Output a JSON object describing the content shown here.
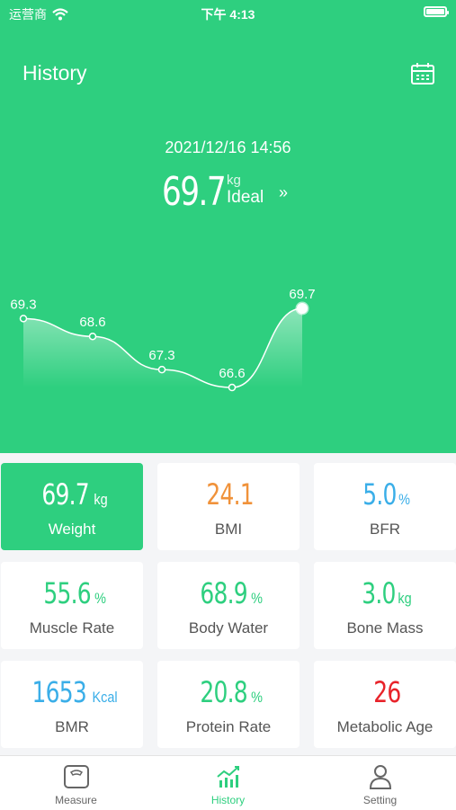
{
  "status_bar": {
    "carrier": "运营商",
    "time": "下午 4:13"
  },
  "header": {
    "title": "History"
  },
  "summary": {
    "datetime": "2021/12/16 14:56",
    "value": "69.7",
    "unit": "kg",
    "status": "Ideal"
  },
  "chart_data": {
    "type": "line",
    "values": [
      69.3,
      68.6,
      67.3,
      66.6,
      69.7
    ],
    "labels": [
      "69.3",
      "68.6",
      "67.3",
      "66.6",
      "69.7"
    ]
  },
  "metrics": [
    {
      "value": "69.7",
      "unit": "kg",
      "label": "Weight",
      "color": "#ffffff",
      "active": true
    },
    {
      "value": "24.1",
      "unit": "",
      "label": "BMI",
      "color": "#f0923a"
    },
    {
      "value": "5.0",
      "unit": "%",
      "label": "BFR",
      "color": "#3aaee8"
    },
    {
      "value": "55.6",
      "unit": "%",
      "label": "Muscle Rate",
      "color": "#2ecf7f"
    },
    {
      "value": "68.9",
      "unit": "%",
      "label": "Body Water",
      "color": "#2ecf7f"
    },
    {
      "value": "3.0",
      "unit": "kg",
      "label": "Bone Mass",
      "color": "#2ecf7f"
    },
    {
      "value": "1653",
      "unit": "Kcal",
      "label": "BMR",
      "color": "#3aaee8"
    },
    {
      "value": "20.8",
      "unit": "%",
      "label": "Protein Rate",
      "color": "#2ecf7f"
    },
    {
      "value": "26",
      "unit": "",
      "label": "Metabolic Age",
      "color": "#e8232a"
    }
  ],
  "tabs": [
    {
      "label": "Measure",
      "icon": "scale-icon"
    },
    {
      "label": "History",
      "icon": "chart-icon",
      "active": true
    },
    {
      "label": "Setting",
      "icon": "person-icon"
    }
  ],
  "colors": {
    "primary": "#2ecf7f"
  }
}
